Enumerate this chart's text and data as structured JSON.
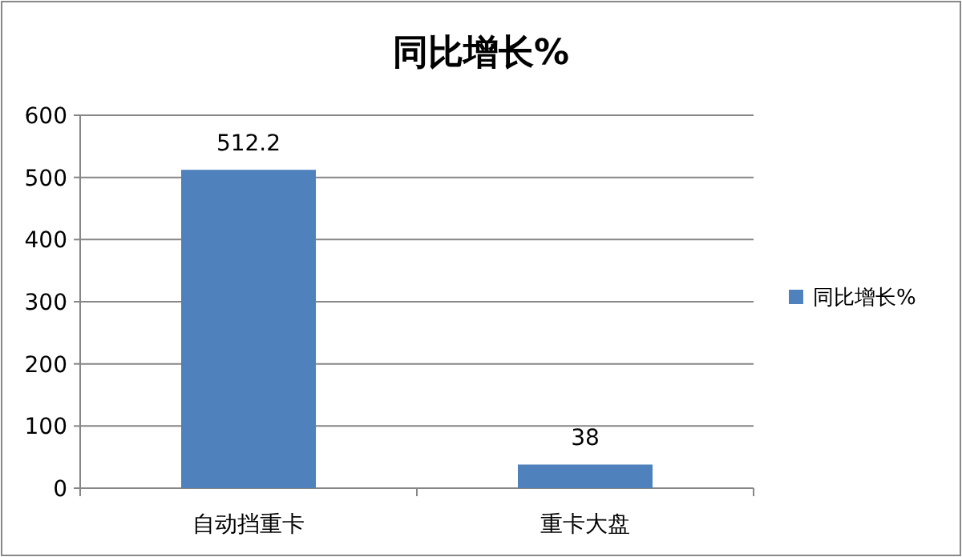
{
  "chart_data": {
    "type": "bar",
    "title": "同比增长%",
    "categories": [
      "自动挡重卡",
      "重卡大盘"
    ],
    "series": [
      {
        "name": "同比增长%",
        "color": "#4f81bd",
        "values": [
          512.2,
          38
        ]
      }
    ],
    "ylim": [
      0,
      600
    ],
    "yticks": [
      0,
      100,
      200,
      300,
      400,
      500,
      600
    ],
    "grid": "y",
    "legend": "right",
    "data_labels": true
  }
}
